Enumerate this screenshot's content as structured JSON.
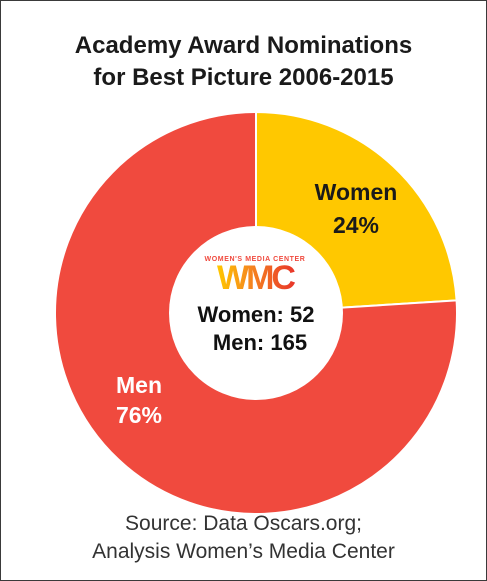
{
  "chart_data": {
    "type": "pie",
    "title_lines": [
      "Academy Award Nominations",
      "for Best Picture 2006-2015"
    ],
    "slices": [
      {
        "name": "Women",
        "value": 24,
        "label": "Women",
        "pct_label": "24%",
        "color": "#ffc800",
        "text_color": "#1a1a1a"
      },
      {
        "name": "Men",
        "value": 76,
        "label": "Men",
        "pct_label": "76%",
        "color": "#f04a3e",
        "text_color": "#ffffff"
      }
    ],
    "center": {
      "logo_caption": "WOMEN'S MEDIA CENTER",
      "logo_text": "WMC",
      "count_lines": [
        "Women: 52",
        "Men: 165"
      ]
    }
  },
  "source_lines": [
    "Source: Data Oscars.org;",
    "Analysis Women’s Media Center"
  ],
  "colors": {
    "women": "#ffc800",
    "men": "#f04a3e",
    "logo_orange": "#f58220",
    "logo_red": "#e8342a",
    "logo_yellow": "#ffc800"
  }
}
